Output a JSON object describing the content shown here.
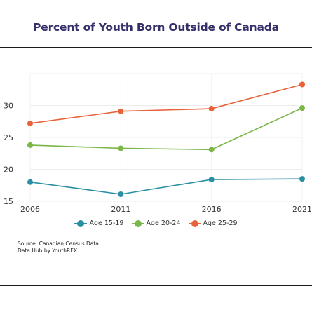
{
  "title": "Percent of Youth Born Outside of Canada",
  "source": {
    "line1": "Source: Canadian Census Data",
    "line2": "Data Hub by YouthREX"
  },
  "chart_data": {
    "type": "line",
    "title": "Percent of Youth Born Outside of Canada",
    "xlabel": "",
    "ylabel": "",
    "x": [
      "2006",
      "2011",
      "2016",
      "2021"
    ],
    "ylim": [
      15,
      35
    ],
    "yticks": [
      15,
      20,
      25,
      30
    ],
    "grid": true,
    "legend_position": "bottom",
    "series": [
      {
        "name": "Age 15-19",
        "color": "#2a8fa3",
        "values": [
          18.0,
          16.1,
          18.4,
          18.5
        ]
      },
      {
        "name": "Age 20-24",
        "color": "#7ab648",
        "values": [
          23.8,
          23.3,
          23.1,
          29.6
        ]
      },
      {
        "name": "Age 25-29",
        "color": "#e8623a",
        "values": [
          27.2,
          29.1,
          29.5,
          33.3
        ]
      }
    ]
  }
}
